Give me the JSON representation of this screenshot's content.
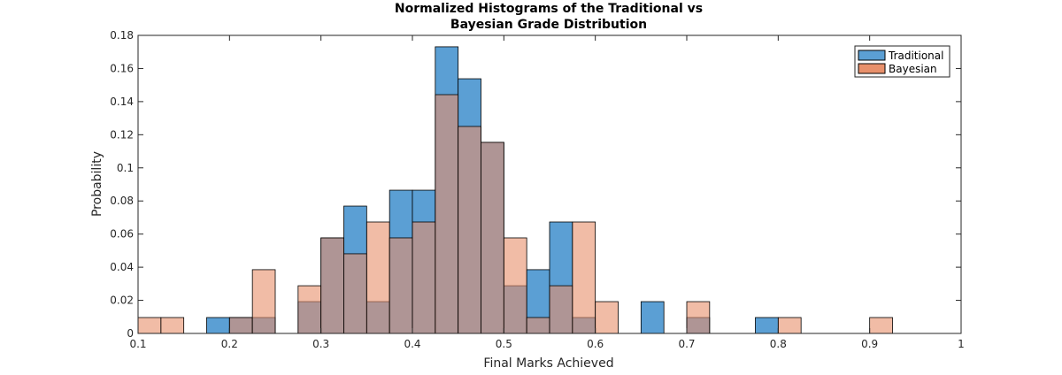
{
  "chart_data": {
    "type": "bar",
    "title": [
      "Normalized Histograms of the Traditional vs",
      "Bayesian Grade Distribution"
    ],
    "xlabel": "Final Marks Achieved",
    "ylabel": "Probability",
    "xlim": [
      0.1,
      1
    ],
    "ylim": [
      0,
      0.18
    ],
    "bin_width": 0.025,
    "bin_start": 0.1,
    "xticks": [
      "0.1",
      "0.2",
      "0.3",
      "0.4",
      "0.5",
      "0.6",
      "0.7",
      "0.8",
      "0.9",
      "1"
    ],
    "yticks": [
      "0",
      "0.02",
      "0.04",
      "0.06",
      "0.08",
      "0.1",
      "0.12",
      "0.14",
      "0.16",
      "0.18"
    ],
    "legend_position": "top-right",
    "grid": false,
    "series": [
      {
        "name": "Traditional",
        "color": "#5b9fd4",
        "values": [
          0,
          0,
          0,
          0.0096,
          0.0096,
          0.0096,
          0,
          0.0192,
          0.0577,
          0.0769,
          0.0192,
          0.0865,
          0.0865,
          0.1731,
          0.1538,
          0.1154,
          0.0288,
          0.0385,
          0.0673,
          0.0096,
          0,
          0,
          0.0192,
          0,
          0.0096,
          0,
          0,
          0.0096,
          0,
          0,
          0,
          0,
          0,
          0,
          0,
          0
        ]
      },
      {
        "name": "Bayesian",
        "color": "#e8906b",
        "values": [
          0.0096,
          0.0096,
          0,
          0,
          0.0096,
          0.0385,
          0,
          0.0288,
          0.0577,
          0.0481,
          0.0673,
          0.0577,
          0.0673,
          0.1442,
          0.125,
          0.1154,
          0.0577,
          0.0096,
          0.0288,
          0.0673,
          0.0192,
          0,
          0,
          0,
          0.0192,
          0,
          0,
          0,
          0.0096,
          0,
          0,
          0,
          0.0096,
          0,
          0,
          0
        ]
      }
    ],
    "overlap_color": "#a97463"
  }
}
